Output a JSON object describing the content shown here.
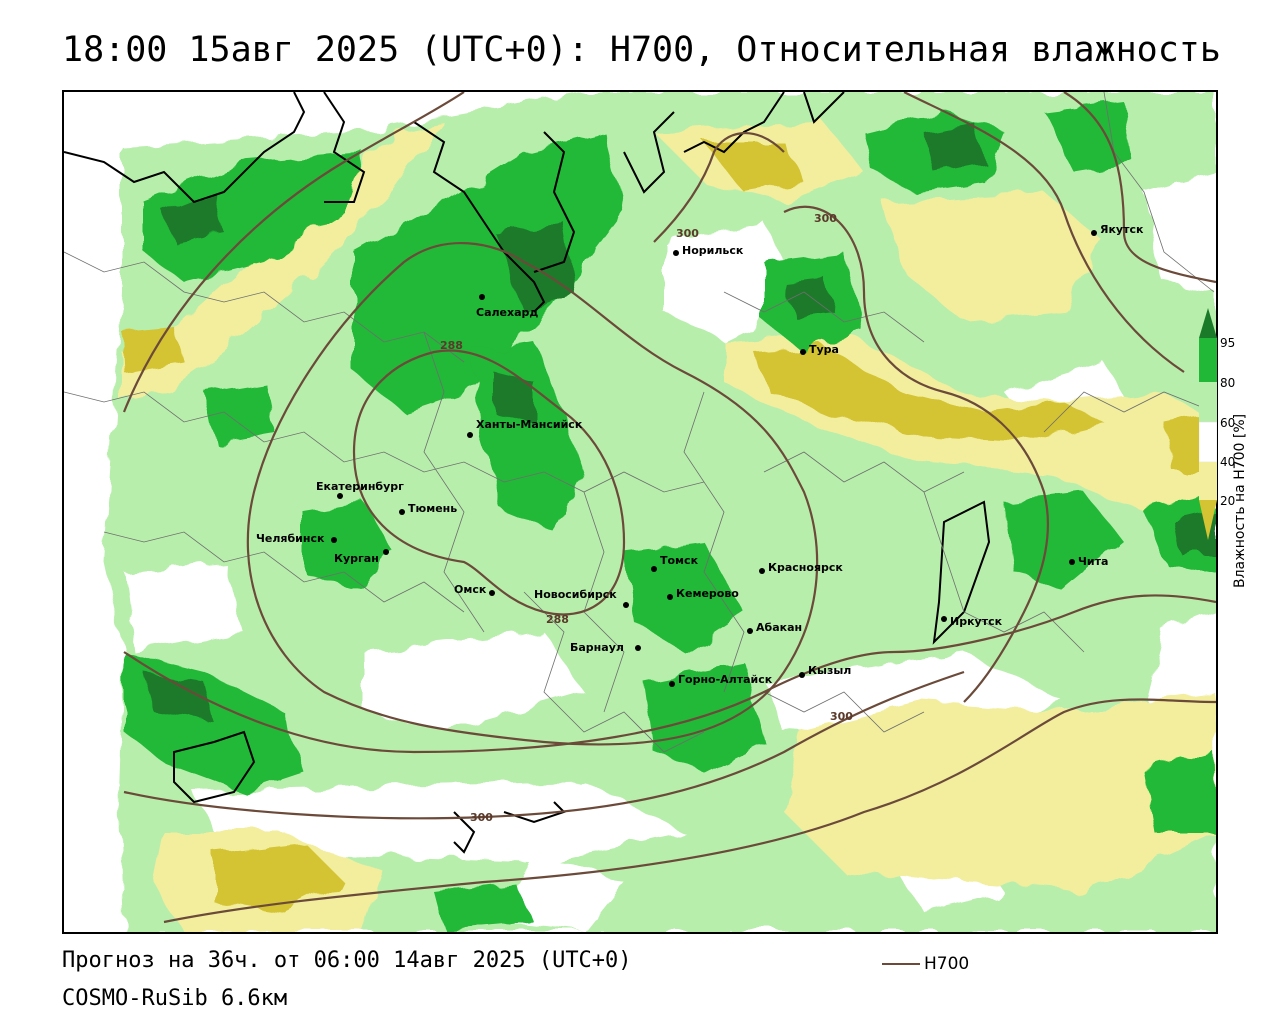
{
  "title": "18:00 15авг 2025 (UTC+0): H700, Относительная влажность",
  "footer": {
    "forecast": "Прогноз на 36ч. от 06:00 14авг 2025 (UTC+0)",
    "model": "COSMO-RuSib 6.6км"
  },
  "legend": {
    "h700": "H700"
  },
  "colorbar": {
    "title": "Влажность на H700 [%]",
    "ticks": [
      "95",
      "80",
      "60",
      "40",
      "20"
    ],
    "colors": {
      "95_plus": "#1a7a2a",
      "80_95": "#22b837",
      "60_80": "#b8eeab",
      "40_60": "#ffffff",
      "20_40": "#f2ee9e",
      "below_20": "#d4c332"
    }
  },
  "contour_colors": {
    "h700": "#6b4a3a"
  },
  "contour_labels": [
    "300",
    "300",
    "288",
    "288",
    "300",
    "300"
  ],
  "cities": [
    {
      "name": "Норильск"
    },
    {
      "name": "Якутск"
    },
    {
      "name": "Салехард"
    },
    {
      "name": "Тура"
    },
    {
      "name": "Ханты-Мансийск"
    },
    {
      "name": "Екатеринбург"
    },
    {
      "name": "Тюмень"
    },
    {
      "name": "Челябинск"
    },
    {
      "name": "Курган"
    },
    {
      "name": "Омск"
    },
    {
      "name": "Новосибирск"
    },
    {
      "name": "Томск"
    },
    {
      "name": "Кемерово"
    },
    {
      "name": "Красноярск"
    },
    {
      "name": "Абакан"
    },
    {
      "name": "Барнаул"
    },
    {
      "name": "Горно-Алтайск"
    },
    {
      "name": "Кызыл"
    },
    {
      "name": "Иркутск"
    },
    {
      "name": "Чита"
    }
  ]
}
